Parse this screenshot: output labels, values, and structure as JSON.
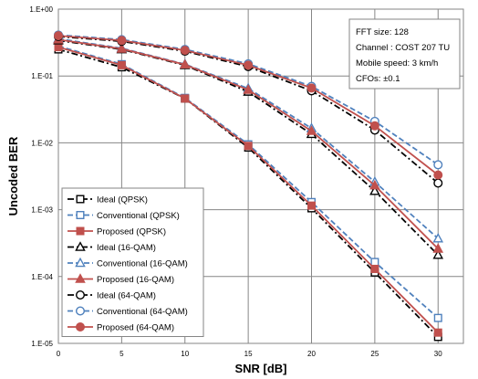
{
  "chart_data": {
    "type": "line",
    "xlabel": "SNR [dB]",
    "ylabel": "Uncoded BER",
    "xlim": [
      0,
      32
    ],
    "xticks": [
      "0",
      "5",
      "10",
      "15",
      "20",
      "25",
      "30"
    ],
    "ylim": [
      1e-05,
      1
    ],
    "yscale": "log",
    "yticks": [
      "1.E-05",
      "1.E-04",
      "1.E-03",
      "1.E-02",
      "1.E-01",
      "1.E+00"
    ],
    "grid": true,
    "legend_position": "bottom-left",
    "x": [
      0,
      5,
      10,
      15,
      20,
      25,
      30
    ],
    "series": [
      {
        "name": "Ideal (QPSK)",
        "color": "#000000",
        "dash": "dashdot",
        "marker": "square-open",
        "values": [
          0.25,
          0.135,
          0.046,
          0.0085,
          0.00105,
          0.000115,
          1.25e-05
        ]
      },
      {
        "name": "Conventional (QPSK)",
        "color": "#4f81bd",
        "dash": "dash",
        "marker": "square-open",
        "values": [
          0.28,
          0.15,
          0.047,
          0.0095,
          0.0013,
          0.000165,
          2.4e-05
        ]
      },
      {
        "name": "Proposed (QPSK)",
        "color": "#c0504d",
        "dash": "solid",
        "marker": "square-filled",
        "values": [
          0.27,
          0.145,
          0.046,
          0.009,
          0.00115,
          0.00013,
          1.45e-05
        ]
      },
      {
        "name": "Ideal (16-QAM)",
        "color": "#000000",
        "dash": "dashdot",
        "marker": "triangle-open",
        "values": [
          0.34,
          0.25,
          0.145,
          0.058,
          0.0135,
          0.0019,
          0.00021
        ]
      },
      {
        "name": "Conventional (16-QAM)",
        "color": "#4f81bd",
        "dash": "dash",
        "marker": "triangle-open",
        "values": [
          0.36,
          0.26,
          0.15,
          0.065,
          0.0165,
          0.0026,
          0.00037
        ]
      },
      {
        "name": "Proposed (16-QAM)",
        "color": "#c0504d",
        "dash": "solid",
        "marker": "triangle-filled",
        "values": [
          0.35,
          0.255,
          0.148,
          0.062,
          0.015,
          0.0023,
          0.00026
        ]
      },
      {
        "name": "Ideal (64-QAM)",
        "color": "#000000",
        "dash": "dashdot",
        "marker": "circle-open",
        "values": [
          0.39,
          0.33,
          0.235,
          0.138,
          0.06,
          0.0155,
          0.0025
        ]
      },
      {
        "name": "Conventional (64-QAM)",
        "color": "#4f81bd",
        "dash": "dash",
        "marker": "circle-open",
        "values": [
          0.41,
          0.35,
          0.25,
          0.152,
          0.07,
          0.021,
          0.0047
        ]
      },
      {
        "name": "Proposed (64-QAM)",
        "color": "#c0504d",
        "dash": "solid",
        "marker": "circle-filled",
        "values": [
          0.4,
          0.34,
          0.242,
          0.145,
          0.066,
          0.018,
          0.0033
        ]
      }
    ],
    "annotations": [
      "FFT size: 128",
      "Channel : COST 207 TU",
      "Mobile speed: 3 km/h",
      "CFOs: ±0.1"
    ]
  }
}
